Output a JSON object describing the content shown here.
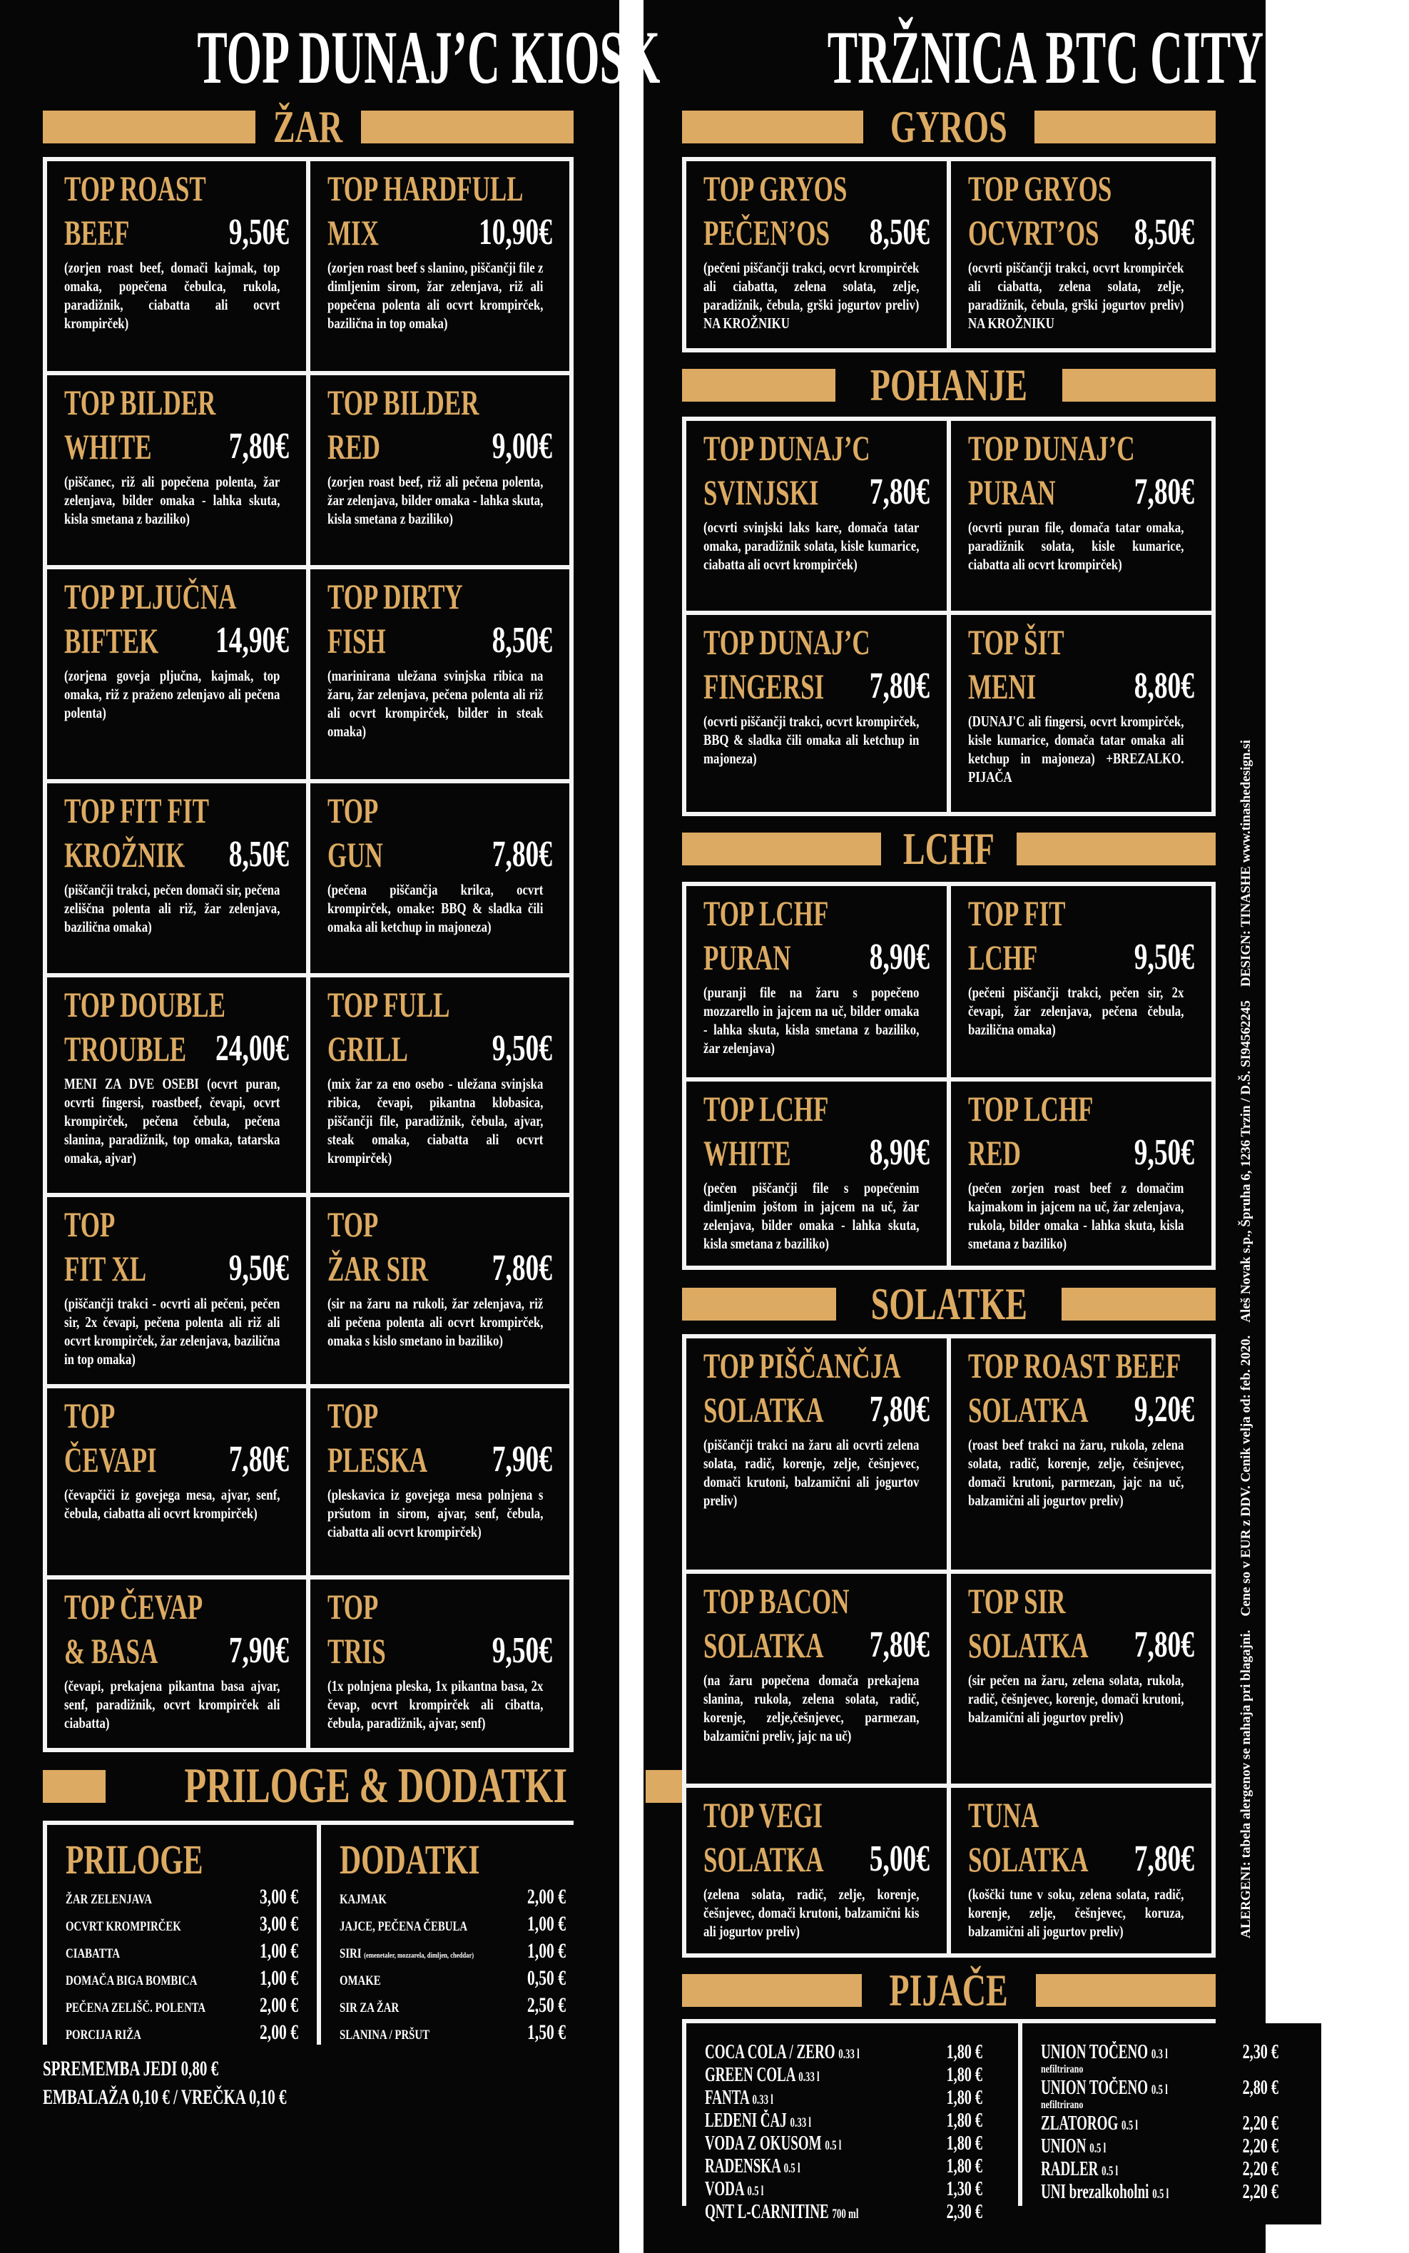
{
  "colors": {
    "background": "#060606",
    "accent_gold": "#dcaa62",
    "text": "#ffffff",
    "border": "#f4f4f4"
  },
  "left": {
    "title": "TOP DUNAJ’C KIOSK",
    "sections": [
      {
        "title": "ŽAR",
        "items": [
          {
            "line1": "TOP ROAST",
            "line2": "BEEF",
            "price": "9,50€",
            "desc": "(zorjen roast beef, domači kajmak, top omaka, popečena čebulca, rukola, paradižnik, ciabatta ali ocvrt krompirček)"
          },
          {
            "line1": "TOP HARDFULL",
            "line2": "MIX",
            "price": "10,90€",
            "desc": "(zorjen roast beef s slanino, piščančji file z dimljenim sirom, žar zelenjava, riž ali popečena polenta ali ocvrt krompirček, bazilična in top omaka)"
          },
          {
            "line1": "TOP BILDER",
            "line2": "WHITE",
            "price": "7,80€",
            "desc": "(piščanec, riž ali popečena polenta, žar zelenjava, bilder omaka - lahka skuta, kisla smetana z baziliko)"
          },
          {
            "line1": "TOP BILDER",
            "line2": "RED",
            "price": "9,00€",
            "desc": "(zorjen roast beef, riž ali pečena polenta, žar zelenjava, bilder omaka - lahka skuta, kisla smetana z baziliko)"
          },
          {
            "line1": "TOP PLJUČNA",
            "line2": "BIFTEK",
            "price": "14,90€",
            "desc": "(zorjena goveja pljučna, kajmak, top omaka, riž z praženo zelenjavo ali pečena polenta)"
          },
          {
            "line1": "TOP DIRTY",
            "line2": "FISH",
            "price": "8,50€",
            "desc": "(marinirana uležana svinjska ribica na žaru, žar zelenjava, pečena polenta ali riž ali ocvrt krompirček, bilder in steak omaka)"
          },
          {
            "line1": "TOP FIT FIT",
            "line2": "KROŽNIK",
            "price": "8,50€",
            "desc": "(piščančji trakci, pečen domači sir, pečena zeliščna polenta ali riž, žar zelenjava, bazilična omaka)"
          },
          {
            "line1": "TOP",
            "line2": "GUN",
            "price": "7,80€",
            "desc": "(pečena piščančja krilca, ocvrt krompirček, omake: BBQ & sladka čili omaka ali ketchup in majoneza)"
          },
          {
            "line1": "TOP DOUBLE",
            "line2": "TROUBLE",
            "price": "24,00€",
            "desc": "MENI ZA DVE OSEBI (ocvrt puran, ocvrti fingersi, roastbeef, čevapi, ocvrt krompirček, pečena čebula, pečena slanina, paradižnik, top omaka, tatarska omaka, ajvar)"
          },
          {
            "line1": "TOP FULL",
            "line2": "GRILL",
            "price": "9,50€",
            "desc": "(mix žar za eno osebo - uležana svinjska ribica, čevapi, pikantna klobasica, piščančji file, paradižnik, čebula, ajvar, steak omaka, ciabatta ali ocvrt krompirček)"
          },
          {
            "line1": "TOP",
            "line2": "FIT XL",
            "price": "9,50€",
            "desc": "(piščančji trakci - ocvrti ali pečeni, pečen sir, 2x čevapi, pečena polenta ali riž ali ocvrt krompirček, žar zelenjava, bazilična in top omaka)"
          },
          {
            "line1": "TOP",
            "line2": "ŽAR SIR",
            "price": "7,80€",
            "desc": "(sir na žaru na rukoli, žar zelenjava, riž ali pečena polenta ali ocvrt krompirček, omaka s kislo smetano in baziliko)"
          },
          {
            "line1": "TOP",
            "line2": "ČEVAPI",
            "price": "7,80€",
            "desc": "(čevapčiči iz govejega mesa, ajvar, senf, čebula, ciabatta ali ocvrt krompirček)"
          },
          {
            "line1": "TOP",
            "line2": "PLESKA",
            "price": "7,90€",
            "desc": "(pleskavica iz govejega mesa polnjena s pršutom in sirom, ajvar, senf, čebula, ciabatta ali ocvrt krompirček)"
          },
          {
            "line1": "TOP ČEVAP",
            "line2": "& BASA",
            "price": "7,90€",
            "desc": "(čevapi, prekajena pikantna basa ajvar, senf, paradižnik, ocvrt krompirček ali ciabatta)"
          },
          {
            "line1": "TOP",
            "line2": "TRIS",
            "price": "9,50€",
            "desc": "(1x polnjena pleska, 1x pikantna basa, 2x čevap, ocvrt krompirček ali cibatta, čebula, paradižnik, ajvar, senf)"
          }
        ]
      }
    ],
    "extras": {
      "title": "PRILOGE & DODATKI",
      "columns": [
        {
          "title": "PRILOGE",
          "rows": [
            {
              "name": "ŽAR ZELENJAVA",
              "price": "3,00 €"
            },
            {
              "name": "OCVRT KROMPIRČEK",
              "price": "3,00 €"
            },
            {
              "name": "CIABATTA",
              "price": "1,00 €"
            },
            {
              "name": "DOMAČA BIGA BOMBICA",
              "price": "1,00 €"
            },
            {
              "name": "PEČENA ZELIŠČ. POLENTA",
              "price": "2,00 €"
            },
            {
              "name": "PORCIJA RIŽA",
              "price": "2,00 €"
            }
          ]
        },
        {
          "title": "DODATKI",
          "rows": [
            {
              "name": "KAJMAK",
              "price": "2,00 €"
            },
            {
              "name": "JAJCE, PEČENA ČEBULA",
              "price": "1,00 €"
            },
            {
              "name": "SIRI",
              "note": "(emenetaler, mozzarela, dimljen, cheddar)",
              "price": "1,00 €"
            },
            {
              "name": "OMAKE",
              "price": "0,50 €"
            },
            {
              "name": "SIR ZA ŽAR",
              "price": "2,50 €"
            },
            {
              "name": "SLANINA / PRŠUT",
              "price": "1,50 €"
            }
          ]
        }
      ]
    },
    "notes": [
      "SPREMEMBA JEDI 0,80 €",
      "EMBALAŽA 0,10 € / VREČKA 0,10 €"
    ]
  },
  "right": {
    "title": "TRŽNICA BTC CITY",
    "sections": [
      {
        "title": "GYROS",
        "items": [
          {
            "line1": "TOP GRYOS",
            "line2": "PEČEN’OS",
            "price": "8,50€",
            "desc": "(pečeni piščančji trakci, ocvrt krompirček ali ciabatta, zelena solata, zelje, paradižnik, čebula, grški jogurtov preliv) NA KROŽNIKU"
          },
          {
            "line1": "TOP GRYOS",
            "line2": "OCVRT’OS",
            "price": "8,50€",
            "desc": "(ocvrti piščančji trakci, ocvrt krompirček ali ciabatta, zelena solata, zelje, paradižnik, čebula, grški jogurtov preliv) NA KROŽNIKU"
          }
        ]
      },
      {
        "title": "POHANJE",
        "items": [
          {
            "line1": "TOP DUNAJ’C",
            "line2": "SVINJSKI",
            "price": "7,80€",
            "desc": "(ocvrti svinjski laks kare, domača tatar omaka, paradižnik solata, kisle kumarice, ciabatta ali ocvrt krompirček)"
          },
          {
            "line1": "TOP DUNAJ’C",
            "line2": "PURAN",
            "price": "7,80€",
            "desc": "(ocvrti puran file, domača tatar omaka, paradižnik solata, kisle kumarice, ciabatta ali ocvrt krompirček)"
          },
          {
            "line1": "TOP DUNAJ’C",
            "line2": "FINGERSI",
            "price": "7,80€",
            "desc": "(ocvrti piščančji trakci, ocvrt krompirček, BBQ & sladka čili omaka ali ketchup in majoneza)"
          },
          {
            "line1": "TOP ŠIT",
            "line2": "MENI",
            "price": "8,80€",
            "desc": "(DUNAJ'C ali fingersi, ocvrt krompirček, kisle kumarice, domača tatar omaka ali ketchup in majoneza)   +BREZALKO. PIJAČA"
          }
        ]
      },
      {
        "title": "LCHF",
        "items": [
          {
            "line1": "TOP LCHF",
            "line2": "PURAN",
            "price": "8,90€",
            "desc": "(puranji file na žaru s popečeno mozzarello in jajcem na uč, bilder omaka - lahka skuta, kisla smetana z baziliko, žar zelenjava)"
          },
          {
            "line1": "TOP FIT",
            "line2": "LCHF",
            "price": "9,50€",
            "desc": "(pečeni piščančji trakci, pečen sir, 2x čevapi, žar zelenjava, pečena čebula, bazilična omaka)"
          },
          {
            "line1": "TOP LCHF",
            "line2": "WHITE",
            "price": "8,90€",
            "desc": "(pečen piščančji file s popečenim dimljenim joštom in jajcem na uč, žar zelenjava, bilder omaka - lahka skuta, kisla smetana z baziliko)"
          },
          {
            "line1": "TOP LCHF",
            "line2": "RED",
            "price": "9,50€",
            "desc": "(pečen zorjen roast beef z domačim kajmakom in jajcem na uč, žar zelenjava, rukola, bilder omaka - lahka skuta, kisla smetana z baziliko)"
          }
        ]
      },
      {
        "title": "SOLATKE",
        "items": [
          {
            "line1": "TOP PIŠČANČJA",
            "line2": "SOLATKA",
            "price": "7,80€",
            "desc": "(piščančji trakci na žaru ali ocvrti zelena solata, radič, korenje, zelje, češnjevec, domači krutoni, balzamični ali jogurtov preliv)"
          },
          {
            "line1": "TOP ROAST BEEF",
            "line2": "SOLATKA",
            "price": "9,20€",
            "desc": "(roast beef trakci na žaru, rukola, zelena solata, radič, korenje, zelje, češnjevec, domači krutoni, parmezan, jajc na uč, balzamični ali jogurtov preliv)"
          },
          {
            "line1": "TOP BACON",
            "line2": "SOLATKA",
            "price": "7,80€",
            "desc": "(na žaru popečena domača prekajena slanina, rukola, zelena solata, radič, korenje, zelje,češnjevec, parmezan, balzamični preliv, jajc na uč)"
          },
          {
            "line1": "TOP SIR",
            "line2": "SOLATKA",
            "price": "7,80€",
            "desc": "(sir pečen na žaru, zelena solata, rukola, radič, češnjevec, korenje, domači krutoni, balzamični ali jogurtov preliv)"
          },
          {
            "line1": "TOP VEGI",
            "line2": "SOLATKA",
            "price": "5,00€",
            "desc": "(zelena solata, radič, zelje, korenje, češnjevec, domači krutoni, balzamični kis ali jogurtov preliv)"
          },
          {
            "line1": "TUNA",
            "line2": "SOLATKA",
            "price": "7,80€",
            "desc": "(koščki tune v soku, zelena solata, radič, korenje, zelje, češnjevec, koruza, balzamični ali jogurtov preliv)"
          }
        ]
      }
    ],
    "drinks": {
      "title": "PIJAČE",
      "columns": [
        [
          {
            "name": "COCA COLA / ZERO",
            "size": "0.33 l",
            "price": "1,80 €"
          },
          {
            "name": "GREEN COLA",
            "size": "0.33 l",
            "price": "1,80 €"
          },
          {
            "name": "FANTA",
            "size": "0.33 l",
            "price": "1,80 €"
          },
          {
            "name": "LEDENI ČAJ",
            "size": "0.33 l",
            "price": "1,80 €"
          },
          {
            "name": "VODA Z OKUSOM",
            "size": "0.5 l",
            "price": "1,80 €"
          },
          {
            "name": "RADENSKA",
            "size": "0.5 l",
            "price": "1,80 €"
          },
          {
            "name": "VODA",
            "size": "0.5 l",
            "price": "1,30 €"
          },
          {
            "name": "QNT L-CARNITINE",
            "size": "700 ml",
            "price": "2,30 €"
          }
        ],
        [
          {
            "name": "UNION TOČENO",
            "size": "0.3 l",
            "price": "2,30 €",
            "sub": "nefiltrirano"
          },
          {
            "name": "UNION TOČENO",
            "size": "0.5 l",
            "price": "2,80 €",
            "sub": "nefiltrirano"
          },
          {
            "name": "ZLATOROG",
            "size": "0.5 l",
            "price": "2,20 €"
          },
          {
            "name": "UNION",
            "size": "0.5 l",
            "price": "2,20 €"
          },
          {
            "name": "RADLER",
            "size": "0.5 l",
            "price": "2,20 €"
          },
          {
            "name": "UNI brezalkoholni",
            "size": "0.5 l",
            "price": "2,20 €"
          }
        ]
      ]
    }
  },
  "side_note": "ALERGENI: tabela alergenov se nahaja pri blagajni.    Cene so v EUR z DDV. Cenik velja od: feb. 2020.    Aleš Novak s.p., Špruha 6, 1236 Trzin / D.Š. SI94562245    DESIGN: TINASHE www.tinashedesign.si"
}
